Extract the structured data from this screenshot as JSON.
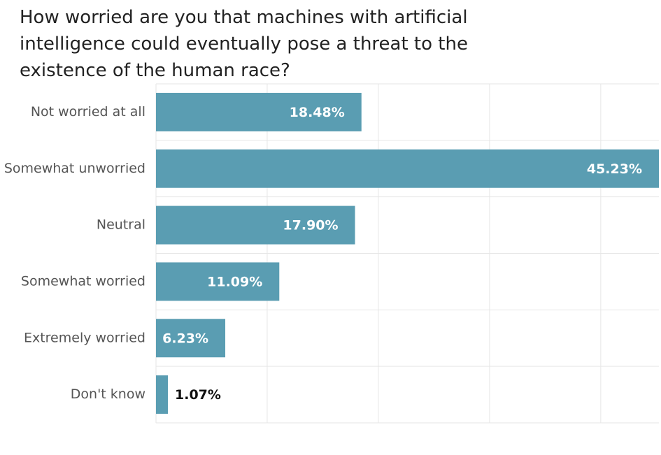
{
  "chart_data": {
    "type": "bar",
    "orientation": "horizontal",
    "title": "How worried are you that machines with artificial intelligence could eventually pose a threat to the existence of the human race?",
    "categories": [
      "Not worried at all",
      "Somewhat unworried",
      "Neutral",
      "Somewhat worried",
      "Extremely worried",
      "Don't know"
    ],
    "values": [
      18.48,
      45.23,
      17.9,
      11.09,
      6.23,
      1.07
    ],
    "value_labels": [
      "18.48%",
      "45.23%",
      "17.90%",
      "11.09%",
      "6.23%",
      "1.07%"
    ],
    "color": "#5a9db2",
    "xlim": [
      0,
      45.23
    ],
    "xticks": [
      0,
      10,
      20,
      30,
      40
    ],
    "grid": true
  }
}
